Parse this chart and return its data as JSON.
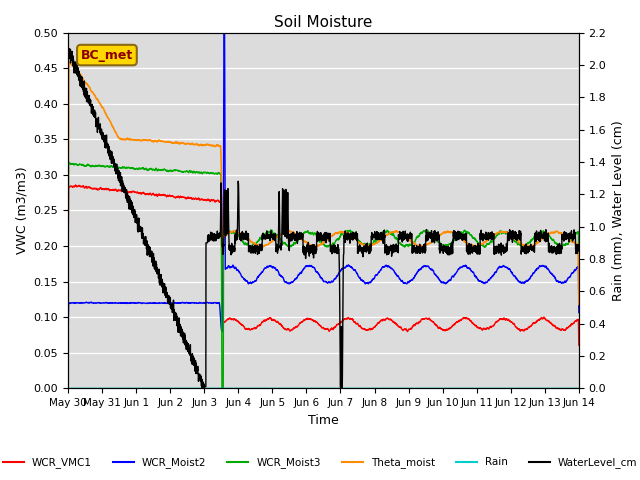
{
  "title": "Soil Moisture",
  "xlabel": "Time",
  "ylabel_left": "VWC (m3/m3)",
  "ylabel_right": "Rain (mm), Water Level (cm)",
  "ylim_left": [
    0.0,
    0.5
  ],
  "ylim_right": [
    0.0,
    2.2
  ],
  "bg_color": "#dcdcdc",
  "annotation_text": "BC_met",
  "annotation_color": "#8B0000",
  "annotation_bg": "#FFD700",
  "legend_entries": [
    "WCR_VMC1",
    "WCR_Moist2",
    "WCR_Moist3",
    "Theta_moist",
    "Rain",
    "WaterLevel_cm"
  ],
  "legend_colors": [
    "#ff0000",
    "#0000ff",
    "#00cc00",
    "#ff8c00",
    "#00cccc",
    "#000000"
  ],
  "xtick_labels": [
    "May 30",
    "May 31",
    "Jun 1",
    "Jun 2",
    "Jun 3",
    "Jun 4",
    "Jun 5",
    "Jun 6",
    "Jun 7",
    "Jun 8",
    "Jun 9",
    "Jun 10",
    "Jun 11",
    "Jun 12",
    "Jun 13",
    "Jun 14"
  ],
  "num_days": 15
}
